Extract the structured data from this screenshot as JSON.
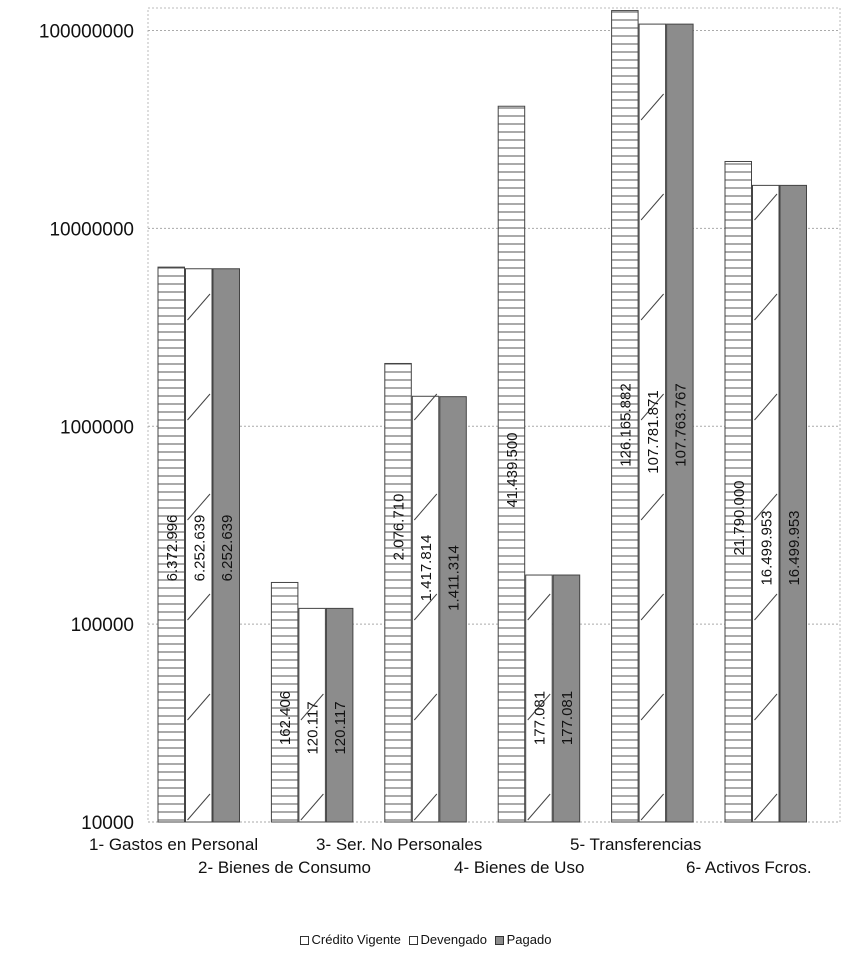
{
  "chart_data": {
    "type": "bar",
    "y_scale": "log",
    "ylim": [
      10000,
      130000000
    ],
    "y_ticks": [
      {
        "value": 10000,
        "label": "10000"
      },
      {
        "value": 100000,
        "label": "100000"
      },
      {
        "value": 1000000,
        "label": "1000000"
      },
      {
        "value": 10000000,
        "label": "10000000"
      },
      {
        "value": 100000000,
        "label": "100000000"
      }
    ],
    "grid": true,
    "categories": [
      "1- Gastos en Personal",
      "2- Bienes de Consumo",
      "3- Ser. No Personales",
      "4- Bienes de Uso",
      "5- Transferencias",
      "6- Activos Fcros."
    ],
    "series": [
      {
        "name": "Crédito Vigente",
        "fill": "#ffffff",
        "pattern": "horizontal-lines",
        "values": [
          6372996,
          162406,
          2076710,
          41439500,
          126165882,
          21790000
        ],
        "labels": [
          "6.372.996",
          "162.406",
          "2.076.710",
          "41.439.500",
          "126.165.882",
          "21.790.000"
        ]
      },
      {
        "name": "Devengado",
        "fill": "#ffffff",
        "pattern": "diagonal-lines",
        "values": [
          6252639,
          120117,
          1417814,
          177081,
          107781871,
          16499953
        ],
        "labels": [
          "6.252.639",
          "120.117",
          "1.417.814",
          "177.081",
          "107.781.871",
          "16.499.953"
        ]
      },
      {
        "name": "Pagado",
        "fill": "#8c8c8c",
        "pattern": "solid",
        "values": [
          6252639,
          120117,
          1411314,
          177081,
          107763767,
          16499953
        ],
        "labels": [
          "6.252.639",
          "120.117",
          "1.411.314",
          "177.081",
          "107.763.767",
          "16.499.953"
        ]
      }
    ],
    "legend_position": "bottom-center",
    "title": "",
    "xlabel": "",
    "ylabel": ""
  }
}
